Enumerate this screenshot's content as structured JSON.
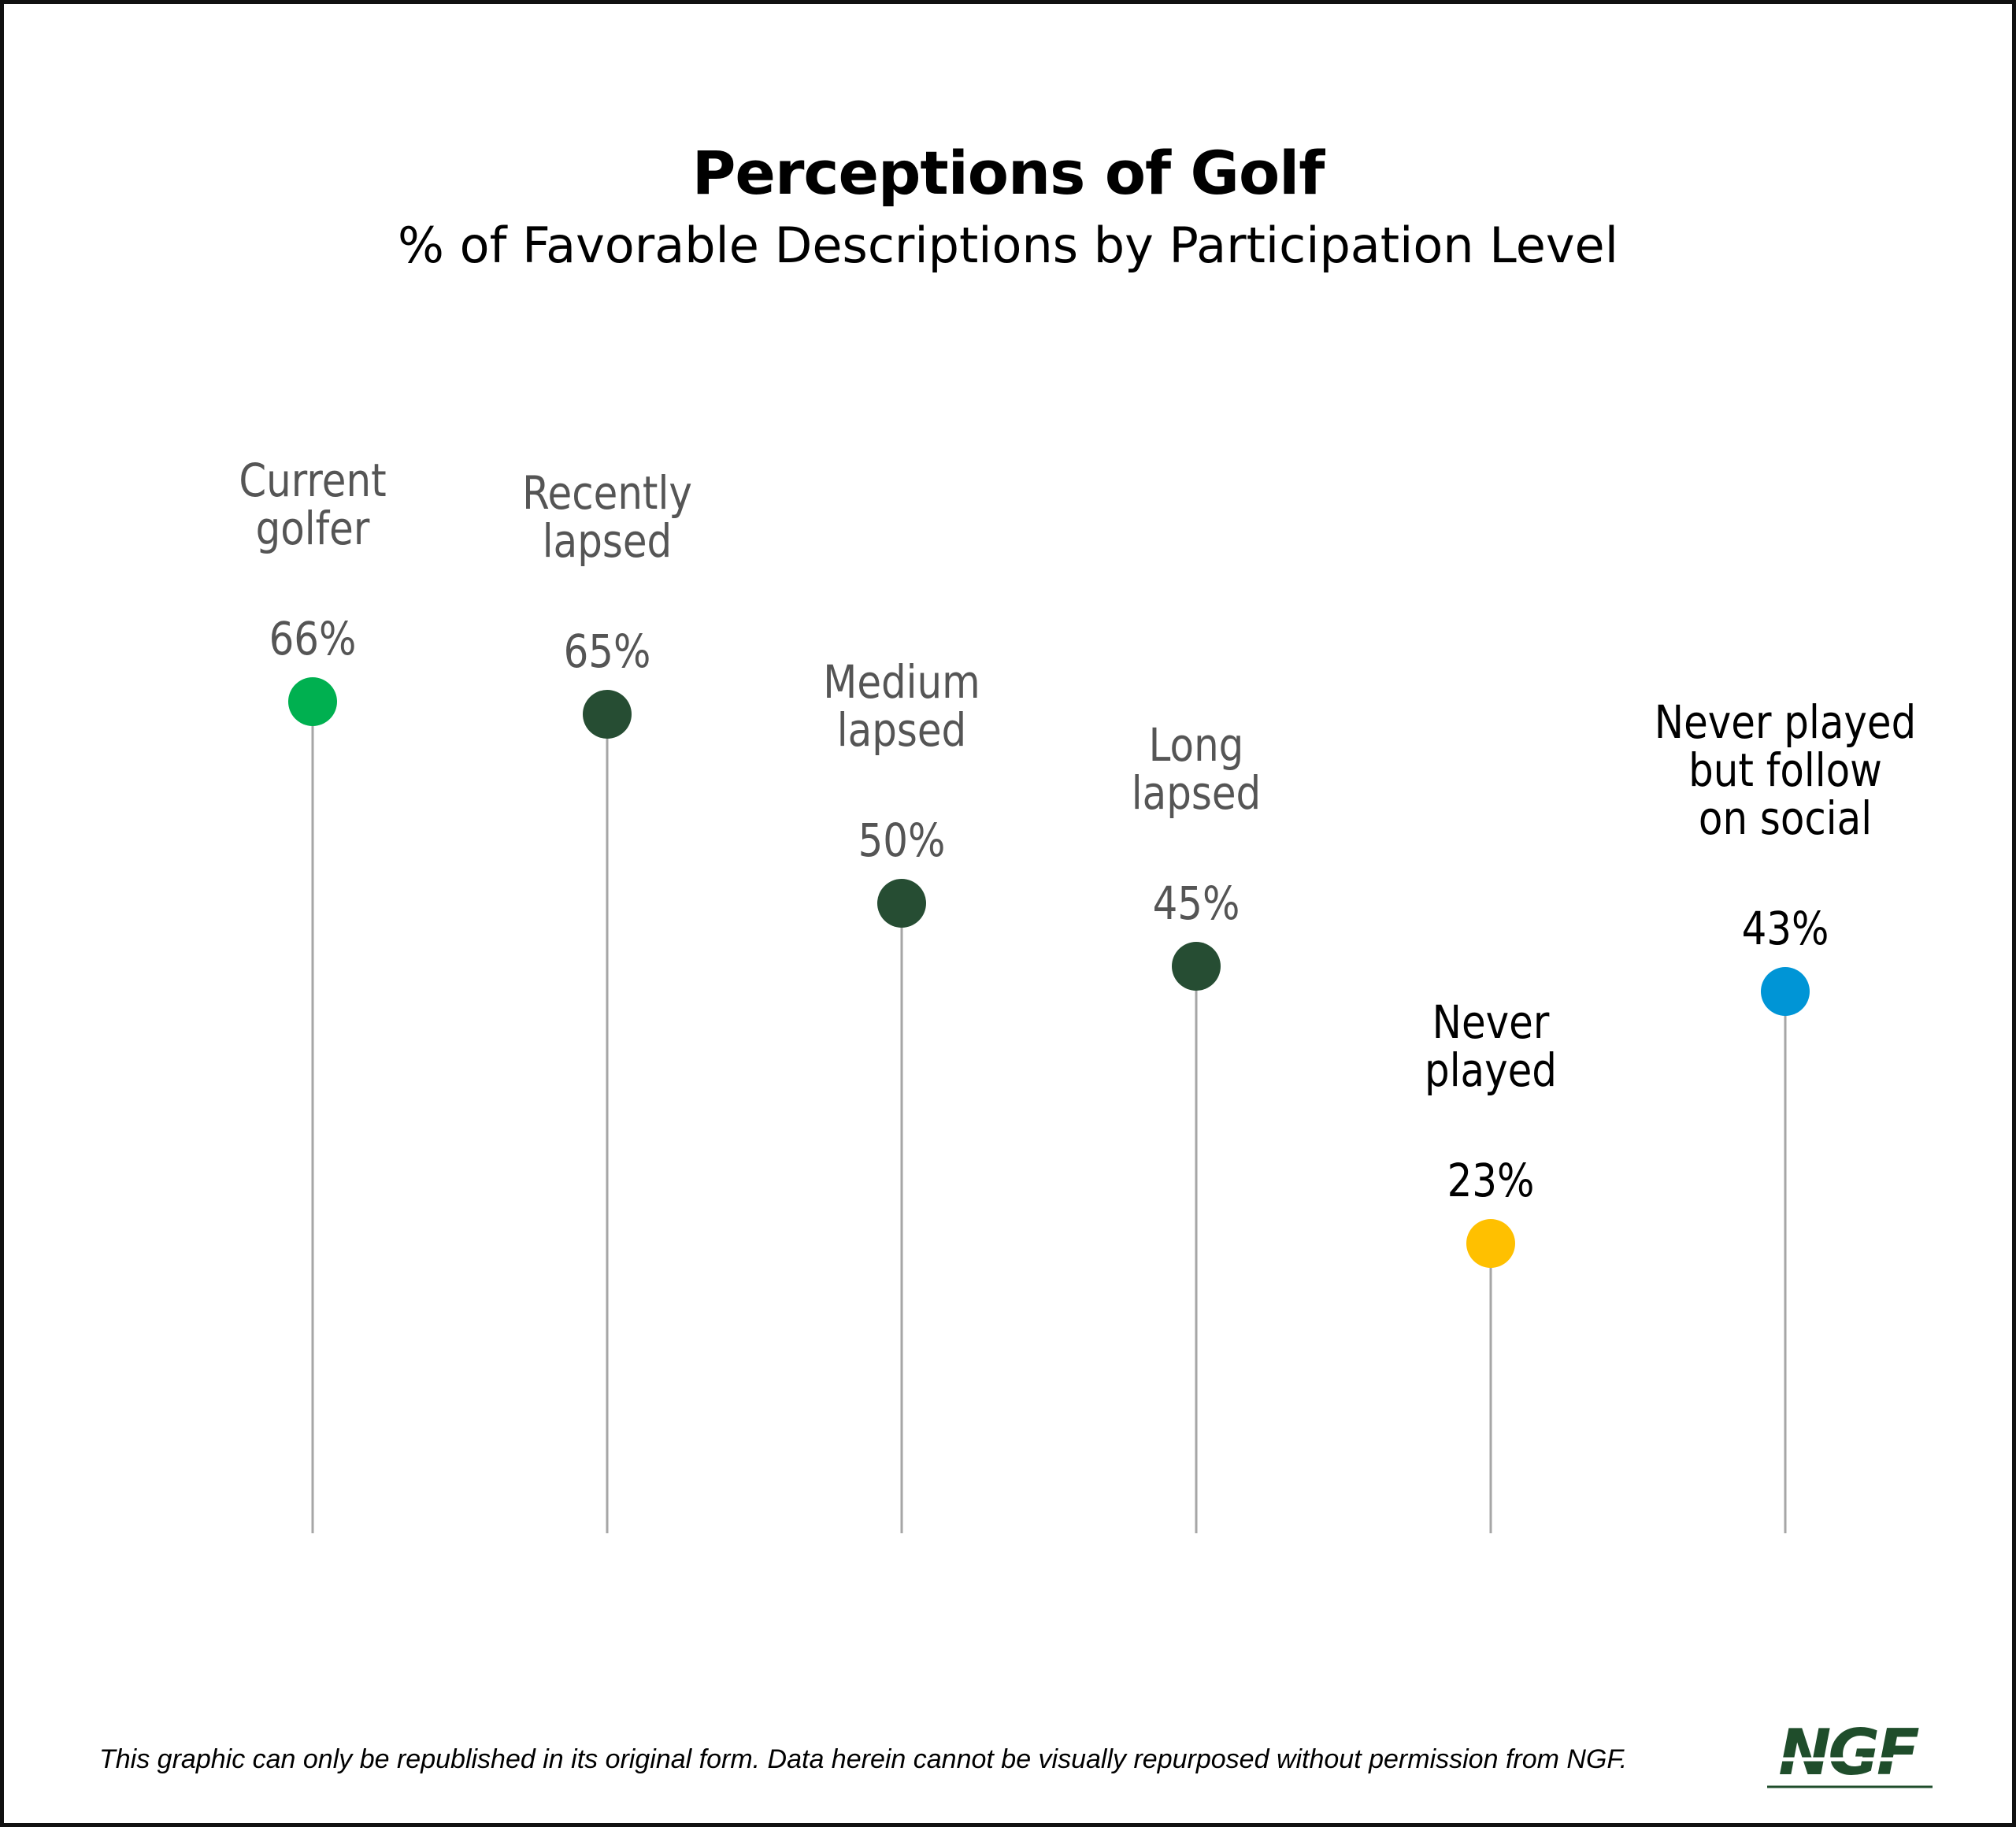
{
  "chart_data": {
    "type": "lollipop",
    "title": "Perceptions of Golf",
    "subtitle": "% of Favorable Descriptions by Participation Level",
    "unit": "%",
    "categories": [
      [
        "Current",
        "golfer"
      ],
      [
        "Recently",
        "lapsed"
      ],
      [
        "Medium",
        "lapsed"
      ],
      [
        "Long",
        "lapsed"
      ],
      [
        "Never",
        "played"
      ],
      [
        "Never played",
        "but follow",
        "on social"
      ]
    ],
    "values": [
      66,
      65,
      50,
      45,
      23,
      43
    ],
    "value_labels": [
      "66%",
      "65%",
      "50%",
      "45%",
      "23%",
      "43%"
    ],
    "colors": [
      "#00b050",
      "#264d33",
      "#264d33",
      "#264d33",
      "#ffc000",
      "#0095d6"
    ],
    "label_colors": [
      "#555555",
      "#555555",
      "#555555",
      "#555555",
      "#000000",
      "#000000"
    ],
    "stem_color": "#a6a6a6",
    "ylim": [
      0,
      100
    ]
  },
  "footnote": "This graphic can only be republished in its original form. Data herein cannot be visually repurposed without permission from NGF.",
  "logo": {
    "text": "NGF",
    "color": "#1f4d2b"
  }
}
